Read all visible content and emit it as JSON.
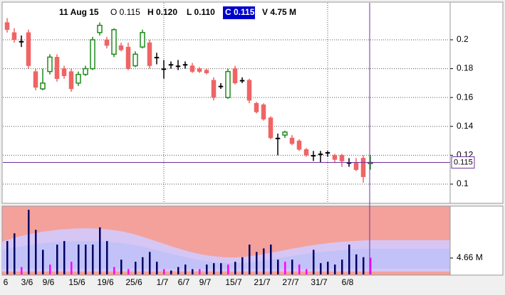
{
  "chart_data": {
    "type": "candlestick",
    "header": {
      "date": "11 Aug 15",
      "open": "O 0.115",
      "high": "H 0.120",
      "low": "L 0.110",
      "close": "C 0.115",
      "volume": "V 4.75 M"
    },
    "categories": [
      "6",
      null,
      null,
      "3/6",
      null,
      null,
      "9/6",
      null,
      null,
      null,
      "15/6",
      null,
      null,
      null,
      "19/6",
      null,
      null,
      null,
      "25/6",
      null,
      null,
      null,
      "1/7",
      null,
      null,
      "6/7",
      null,
      null,
      "9/7",
      null,
      null,
      null,
      "15/7",
      null,
      null,
      null,
      "21/7",
      null,
      null,
      null,
      "27/7",
      null,
      null,
      null,
      "31/7",
      null,
      null,
      null,
      "6/8",
      null,
      null,
      null
    ],
    "open": [
      0.212,
      0.205,
      0.199,
      0.205,
      0.178,
      0.166,
      0.178,
      0.188,
      0.18,
      0.178,
      0.17,
      0.176,
      0.18,
      0.205,
      0.2,
      0.19,
      0.196,
      0.195,
      0.182,
      0.195,
      0.198,
      0.188,
      0.18,
      0.183,
      0.182,
      0.183,
      0.182,
      0.18,
      0.179,
      0.172,
      0.168,
      0.16,
      0.18,
      0.172,
      0.172,
      0.156,
      0.155,
      0.146,
      0.132,
      0.134,
      0.132,
      0.13,
      0.124,
      0.12,
      0.121,
      0.122,
      0.12,
      0.12,
      0.115,
      0.115,
      0.118,
      0.115
    ],
    "high": [
      0.215,
      0.208,
      0.203,
      0.207,
      0.18,
      0.18,
      0.19,
      0.19,
      0.182,
      0.18,
      0.178,
      0.182,
      0.202,
      0.212,
      0.202,
      0.208,
      0.198,
      0.198,
      0.192,
      0.207,
      0.2,
      0.191,
      0.186,
      0.185,
      0.186,
      0.185,
      0.184,
      0.181,
      0.18,
      0.174,
      0.17,
      0.18,
      0.182,
      0.174,
      0.173,
      0.157,
      0.156,
      0.147,
      0.135,
      0.137,
      0.134,
      0.131,
      0.125,
      0.123,
      0.123,
      0.123,
      0.121,
      0.121,
      0.118,
      0.118,
      0.12,
      0.12
    ],
    "low": [
      0.205,
      0.198,
      0.195,
      0.18,
      0.165,
      0.165,
      0.176,
      0.171,
      0.173,
      0.164,
      0.168,
      0.175,
      0.179,
      0.203,
      0.194,
      0.188,
      0.192,
      0.179,
      0.181,
      0.194,
      0.18,
      0.183,
      0.173,
      0.18,
      0.179,
      0.18,
      0.177,
      0.177,
      0.176,
      0.158,
      0.166,
      0.159,
      0.169,
      0.17,
      0.156,
      0.149,
      0.144,
      0.131,
      0.12,
      0.132,
      0.127,
      0.123,
      0.119,
      0.116,
      0.115,
      0.119,
      0.115,
      0.112,
      0.112,
      0.109,
      0.101,
      0.11
    ],
    "close": [
      0.207,
      0.2,
      0.199,
      0.182,
      0.167,
      0.17,
      0.188,
      0.173,
      0.175,
      0.166,
      0.176,
      0.18,
      0.2,
      0.21,
      0.196,
      0.207,
      0.193,
      0.18,
      0.19,
      0.205,
      0.182,
      0.188,
      0.18,
      0.183,
      0.182,
      0.183,
      0.178,
      0.178,
      0.177,
      0.16,
      0.168,
      0.178,
      0.17,
      0.172,
      0.158,
      0.15,
      0.145,
      0.132,
      0.132,
      0.136,
      0.128,
      0.124,
      0.12,
      0.12,
      0.121,
      0.122,
      0.117,
      0.116,
      0.115,
      0.11,
      0.105,
      0.115
    ],
    "candle_colors": [
      "#f06464",
      "#f06464",
      "#000000",
      "#f06464",
      "#f06464",
      "#1e8c1e",
      "#1e8c1e",
      "#f06464",
      "#f06464",
      "#f06464",
      "#1e8c1e",
      "#1e8c1e",
      "#1e8c1e",
      "#1e8c1e",
      "#f06464",
      "#1e8c1e",
      "#f06464",
      "#f06464",
      "#1e8c1e",
      "#1e8c1e",
      "#f06464",
      "#000000",
      "#000000",
      "#000000",
      "#000000",
      "#000000",
      "#f06464",
      "#f06464",
      "#f06464",
      "#f06464",
      "#000000",
      "#1e8c1e",
      "#f06464",
      "#000000",
      "#f06464",
      "#f06464",
      "#f06464",
      "#f06464",
      "#000000",
      "#1e8c1e",
      "#f06464",
      "#f06464",
      "#f06464",
      "#000000",
      "#000000",
      "#000000",
      "#f06464",
      "#f06464",
      "#000000",
      "#f06464",
      "#f06464",
      "#1e8c1e"
    ],
    "hollow_color": "#1e8c1e",
    "ylim": [
      0.0872,
      0.2251
    ],
    "yticks": [
      0.2,
      0.18,
      0.16,
      0.14,
      0.12,
      0.1
    ],
    "cursor_price": 0.115,
    "volume": [
      9.5,
      11.7,
      2.1,
      18.4,
      12.7,
      7.0,
      2.8,
      8.5,
      9.5,
      3.6,
      8.5,
      8.5,
      8.5,
      13.4,
      9.5,
      2.1,
      4.2,
      1.5,
      3.6,
      4.9,
      6.4,
      3.6,
      1.5,
      1.1,
      2.1,
      2.8,
      1.5,
      1.5,
      2.8,
      3.2,
      3.2,
      2.8,
      3.6,
      4.9,
      8.5,
      6.4,
      7.4,
      8.5,
      4.2,
      3.6,
      4.2,
      2.8,
      1.5,
      7.0,
      3.2,
      3.6,
      2.8,
      4.2,
      8.5,
      5.7,
      4.9,
      4.75
    ],
    "volume_colors": [
      "#000066",
      "#000066",
      "#ff00ff",
      "#000066",
      "#000066",
      "#000066",
      "#ff00ff",
      "#000066",
      "#000066",
      "#ff00ff",
      "#000066",
      "#000066",
      "#000066",
      "#000066",
      "#000066",
      "#ff00ff",
      "#000066",
      "#ff00ff",
      "#000066",
      "#000066",
      "#000066",
      "#000066",
      "#ff00ff",
      "#000066",
      "#000066",
      "#000066",
      "#000066",
      "#ff00ff",
      "#000066",
      "#000066",
      "#000066",
      "#ff00ff",
      "#000066",
      "#000066",
      "#000066",
      "#000066",
      "#000066",
      "#000066",
      "#000066",
      "#ff00ff",
      "#000066",
      "#ff00ff",
      "#ff00ff",
      "#000066",
      "#000066",
      "#000066",
      "#000066",
      "#000066",
      "#000066",
      "#000066",
      "#000066",
      "#ff00ff"
    ],
    "vlim": [
      0,
      19.45
    ],
    "vticks": [
      {
        "value": 4.66,
        "label": "4.66 M"
      }
    ]
  }
}
